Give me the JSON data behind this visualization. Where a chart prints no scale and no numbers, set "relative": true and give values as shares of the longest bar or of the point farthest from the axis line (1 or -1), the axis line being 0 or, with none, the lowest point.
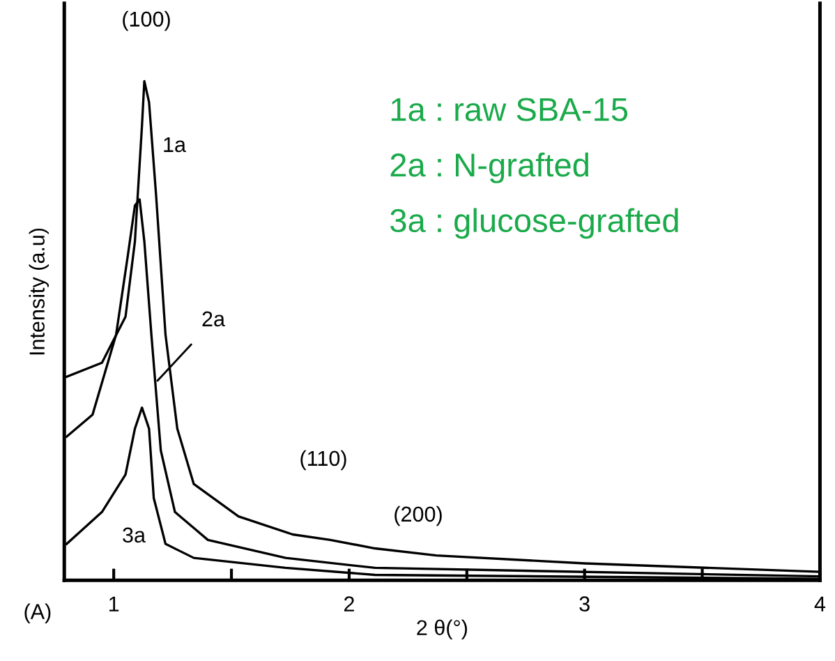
{
  "chart_data": {
    "type": "line",
    "relative": true,
    "xlabel": "2 θ(°)",
    "ylabel": "Intensity (a.u)",
    "xlim": [
      0.79,
      4
    ],
    "xticks": [
      1,
      {
        "value": 1.5,
        "label": null
      },
      2,
      {
        "value": 2.5,
        "label": null
      },
      3,
      {
        "value": 3.5,
        "label": null
      },
      4
    ],
    "tick_labels": "x",
    "grid": false,
    "legend": false,
    "marker": "none",
    "line_style": "solid",
    "series": [
      {
        "color": "#000000",
        "x": [
          0.8,
          0.95,
          1.05,
          1.09,
          1.12,
          1.13,
          1.15,
          1.18,
          1.22,
          1.27,
          1.34,
          1.53,
          1.76,
          1.92,
          2.11,
          2.37,
          3.0,
          4.0
        ],
        "values": [
          0.408,
          0.436,
          0.528,
          0.679,
          0.911,
          1.0,
          0.958,
          0.771,
          0.492,
          0.304,
          0.193,
          0.128,
          0.092,
          0.081,
          0.064,
          0.05,
          0.034,
          0.017
        ]
      },
      {
        "color": "#000000",
        "x": [
          0.8,
          0.91,
          1.01,
          1.06,
          1.09,
          1.11,
          1.13,
          1.16,
          1.2,
          1.26,
          1.4,
          1.73,
          2.11,
          4.0
        ],
        "values": [
          0.288,
          0.332,
          0.492,
          0.651,
          0.751,
          0.763,
          0.679,
          0.492,
          0.26,
          0.137,
          0.081,
          0.045,
          0.025,
          0.008
        ]
      },
      {
        "color": "#000000",
        "x": [
          0.8,
          0.95,
          1.05,
          1.09,
          1.12,
          1.15,
          1.17,
          1.22,
          1.34,
          1.73,
          2.11,
          4.0
        ],
        "values": [
          0.073,
          0.137,
          0.212,
          0.304,
          0.346,
          0.304,
          0.165,
          0.073,
          0.045,
          0.025,
          0.011,
          0.003
        ]
      }
    ],
    "annotations": [
      "(100)",
      "1a",
      "2a",
      "3a",
      "(110)",
      "(200)",
      "1a : raw SBA-15",
      "2a : N-grafted",
      "3a : glucose-grafted",
      "(A)"
    ]
  }
}
